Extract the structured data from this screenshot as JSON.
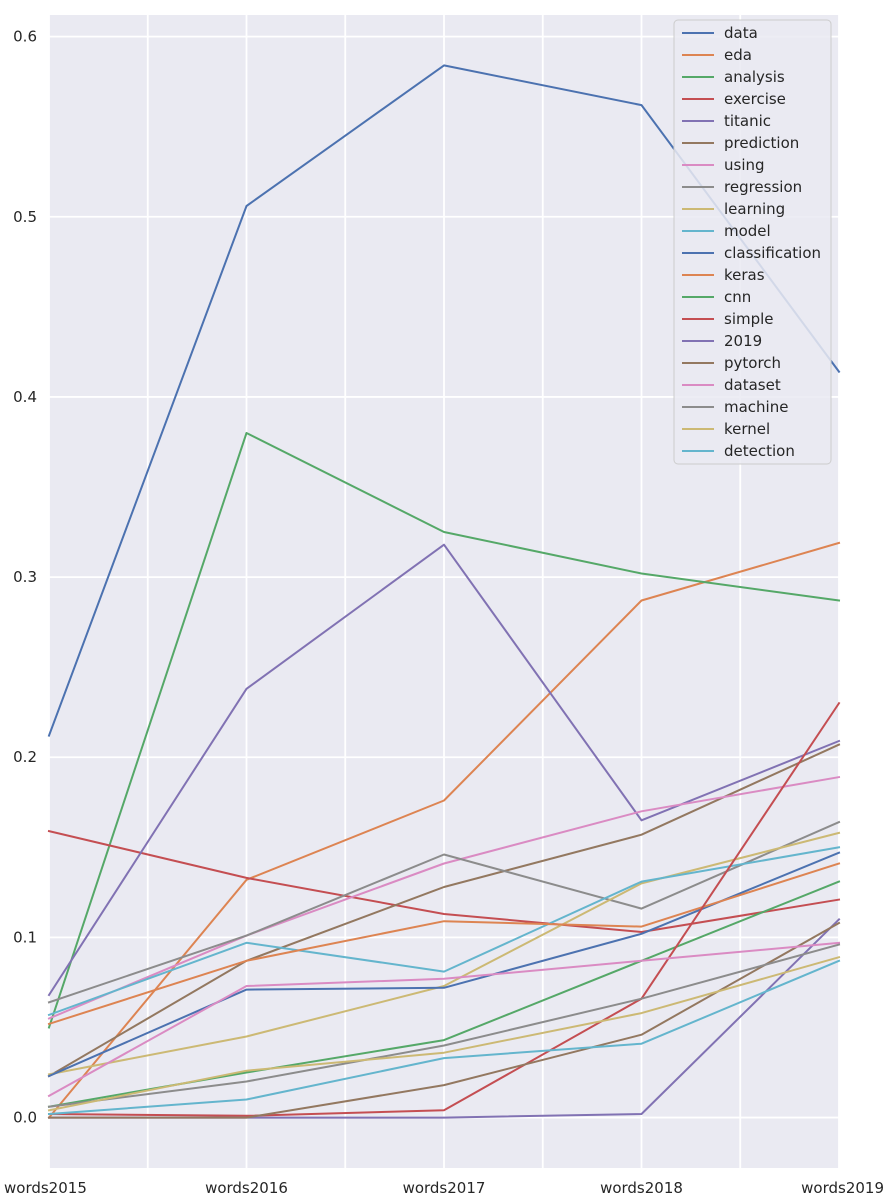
{
  "chart_data": {
    "type": "line",
    "title": "",
    "xlabel": "",
    "ylabel": "",
    "categories": [
      "words2015",
      "words2016",
      "words2017",
      "words2018",
      "words2019"
    ],
    "ylim": [
      -0.028,
      0.612
    ],
    "yticks": [
      0.0,
      0.1,
      0.2,
      0.3,
      0.4,
      0.5,
      0.6
    ],
    "ytick_labels": [
      "0.0",
      "0.1",
      "0.2",
      "0.3",
      "0.4",
      "0.5",
      "0.6"
    ],
    "grid": true,
    "legend_position": "top-right",
    "series": [
      {
        "name": "data",
        "color": "#4c72b0",
        "values": [
          0.212,
          0.506,
          0.584,
          0.562,
          0.414
        ]
      },
      {
        "name": "eda",
        "color": "#dd8452",
        "values": [
          0.0,
          0.132,
          0.176,
          0.287,
          0.319
        ]
      },
      {
        "name": "analysis",
        "color": "#55a868",
        "values": [
          0.05,
          0.38,
          0.325,
          0.302,
          0.287
        ]
      },
      {
        "name": "exercise",
        "color": "#c44e52",
        "values": [
          0.159,
          0.133,
          0.113,
          0.103,
          0.121
        ]
      },
      {
        "name": "titanic",
        "color": "#8172b3",
        "values": [
          0.068,
          0.238,
          0.318,
          0.165,
          0.209
        ]
      },
      {
        "name": "prediction",
        "color": "#937860",
        "values": [
          0.023,
          0.087,
          0.128,
          0.157,
          0.207
        ]
      },
      {
        "name": "using",
        "color": "#da8bc3",
        "values": [
          0.055,
          0.101,
          0.141,
          0.17,
          0.189
        ]
      },
      {
        "name": "regression",
        "color": "#8c8c8c",
        "values": [
          0.064,
          0.101,
          0.146,
          0.116,
          0.164
        ]
      },
      {
        "name": "learning",
        "color": "#ccb974",
        "values": [
          0.024,
          0.045,
          0.073,
          0.13,
          0.158
        ]
      },
      {
        "name": "model",
        "color": "#64b5cd",
        "values": [
          0.057,
          0.097,
          0.081,
          0.131,
          0.15
        ]
      },
      {
        "name": "classification",
        "color": "#4c72b0",
        "values": [
          0.023,
          0.071,
          0.072,
          0.102,
          0.147
        ]
      },
      {
        "name": "keras",
        "color": "#dd8452",
        "values": [
          0.052,
          0.087,
          0.109,
          0.106,
          0.141
        ]
      },
      {
        "name": "cnn",
        "color": "#55a868",
        "values": [
          0.006,
          0.025,
          0.043,
          0.087,
          0.131
        ]
      },
      {
        "name": "simple",
        "color": "#c44e52",
        "values": [
          0.002,
          0.001,
          0.004,
          0.066,
          0.23
        ]
      },
      {
        "name": "2019",
        "color": "#8172b3",
        "values": [
          0.0,
          0.0,
          0.0,
          0.002,
          0.11
        ]
      },
      {
        "name": "pytorch",
        "color": "#937860",
        "values": [
          0.0,
          0.0,
          0.018,
          0.046,
          0.108
        ]
      },
      {
        "name": "dataset",
        "color": "#da8bc3",
        "values": [
          0.012,
          0.073,
          0.077,
          0.087,
          0.097
        ]
      },
      {
        "name": "machine",
        "color": "#8c8c8c",
        "values": [
          0.006,
          0.02,
          0.04,
          0.066,
          0.096
        ]
      },
      {
        "name": "kernel",
        "color": "#ccb974",
        "values": [
          0.004,
          0.026,
          0.036,
          0.058,
          0.089
        ]
      },
      {
        "name": "detection",
        "color": "#64b5cd",
        "values": [
          0.002,
          0.01,
          0.033,
          0.041,
          0.087
        ]
      }
    ]
  },
  "colors": {
    "plot_background": "#eaeaf2",
    "grid": "#ffffff",
    "legend_background": "#eaeaf2",
    "legend_border": "#cccccc",
    "text": "#262626"
  }
}
